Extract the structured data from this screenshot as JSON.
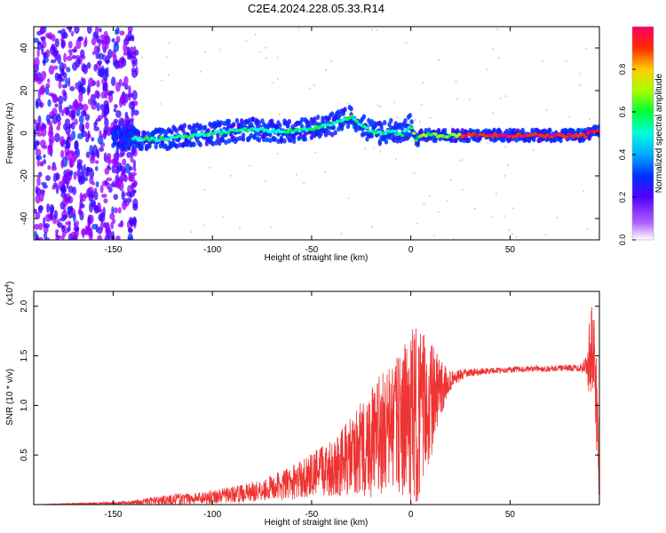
{
  "figure": {
    "title": "C2E4.2024.228.05.33.R14"
  },
  "chart_data": [
    {
      "type": "heatmap",
      "title": "C2E4.2024.228.05.33.R14",
      "xlabel": "Height of straight line (km)",
      "ylabel": "Frequency (Hz)",
      "xlim": [
        -190,
        95
      ],
      "ylim": [
        -50,
        50
      ],
      "xticks": [
        -150,
        -100,
        -50,
        0,
        50
      ],
      "yticks": [
        -40,
        -20,
        0,
        20,
        40
      ],
      "grid": false,
      "colorbar": {
        "label": "Normalized spectral amplitude",
        "range": [
          0,
          1
        ],
        "ticks": [
          "0.0",
          "0.2",
          "0.4",
          "0.6",
          "0.8"
        ],
        "colors": [
          "#ffffff",
          "#9a00ff",
          "#3b00ff",
          "#0033ff",
          "#00a8ff",
          "#00ffe0",
          "#00ff40",
          "#a0ff00",
          "#ffd000",
          "#ff3000",
          "#ff0060"
        ]
      },
      "ridge_frequency_hz": {
        "height_km": [
          -140,
          -130,
          -120,
          -110,
          -100,
          -90,
          -80,
          -70,
          -60,
          -50,
          -40,
          -35,
          -30,
          -25,
          -20,
          -15,
          -10,
          -5,
          0,
          3,
          5,
          10,
          20,
          30,
          40,
          50,
          60,
          70,
          80,
          88,
          92
        ],
        "values": [
          -2,
          -3,
          -2,
          -1,
          0,
          1,
          2,
          1,
          1,
          2,
          4,
          6,
          8,
          4,
          1,
          0,
          1,
          -1,
          4,
          -4,
          -1,
          -1,
          -1,
          -1,
          -1,
          -1,
          -1,
          -1,
          -1,
          -1,
          1
        ]
      }
    },
    {
      "type": "line",
      "xlabel": "Height of straight line (km)",
      "ylabel": "SNR (10 * v/v)",
      "y_multiplier": "(x10^4)",
      "xlim": [
        -190,
        95
      ],
      "ylim": [
        0,
        2.15
      ],
      "xticks": [
        -150,
        -100,
        -50,
        0,
        50
      ],
      "yticks": [
        "0.5",
        "1.0",
        "1.5",
        "2.0"
      ],
      "color": "#ee3333",
      "envelope": {
        "height_km": [
          -190,
          -160,
          -140,
          -130,
          -120,
          -110,
          -100,
          -90,
          -80,
          -70,
          -60,
          -50,
          -40,
          -30,
          -25,
          -20,
          -15,
          -10,
          -5,
          0,
          3,
          5,
          8,
          10,
          15,
          20,
          25,
          30,
          40,
          50,
          60,
          70,
          80,
          85,
          88,
          90,
          92,
          93,
          95
        ],
        "mean": [
          0.0,
          0.01,
          0.02,
          0.04,
          0.05,
          0.06,
          0.08,
          0.1,
          0.13,
          0.17,
          0.22,
          0.3,
          0.38,
          0.48,
          0.55,
          0.62,
          0.7,
          0.78,
          0.82,
          0.88,
          0.9,
          0.95,
          1.0,
          1.05,
          1.15,
          1.25,
          1.3,
          1.33,
          1.35,
          1.36,
          1.37,
          1.37,
          1.38,
          1.38,
          1.4,
          1.5,
          1.55,
          1.2,
          0.5
        ],
        "amplitude": [
          0.0,
          0.01,
          0.02,
          0.04,
          0.06,
          0.06,
          0.07,
          0.08,
          0.1,
          0.13,
          0.17,
          0.22,
          0.3,
          0.4,
          0.5,
          0.58,
          0.62,
          0.65,
          0.7,
          0.9,
          0.9,
          0.8,
          0.7,
          0.6,
          0.3,
          0.1,
          0.06,
          0.04,
          0.03,
          0.03,
          0.03,
          0.03,
          0.03,
          0.04,
          0.1,
          0.4,
          0.55,
          0.6,
          0.5
        ]
      }
    }
  ]
}
